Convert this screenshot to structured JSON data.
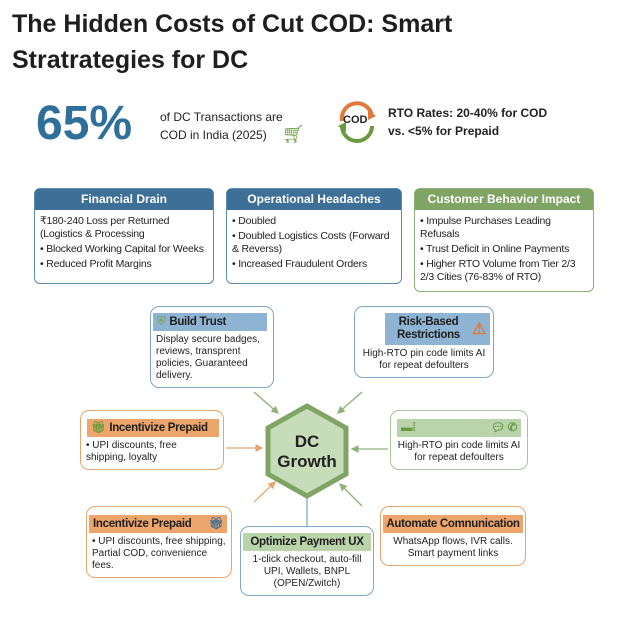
{
  "title": "The Hidden Costs of Cut COD: Smart Stratrategies for DC",
  "stat": {
    "value": "65%",
    "line1": "of DC Transactions are",
    "line2": "COD in India (2025)",
    "cod_label": "COD",
    "rto_line1": "RTO Rates: 20-40% for COD",
    "rto_line2": "vs. <5% for Prepaid"
  },
  "cards": [
    {
      "title": "Financial Drain",
      "items": [
        "₹180-240 Loss per Returned (Logistics & Processing",
        "• Blocked Working Capital for Weeks",
        "• Reduced Profit Margins"
      ]
    },
    {
      "title": "Operational Headaches",
      "items": [
        "• Doubled",
        "• Doubled Logistics Costs (Forward & Reverss)",
        "• Increased Fraudulent Orders"
      ]
    },
    {
      "title": "Customer Behavior Impact",
      "items": [
        "• Impulse Purchases Leading Refusals",
        "• Trust Deficit in Online Payments",
        "• Higher RTO Volume from Tier 2/3 2/3 Cities (76-83% of RTO)"
      ]
    }
  ],
  "center": {
    "line1": "DC",
    "line2": "Growth"
  },
  "strategies": {
    "build_trust": {
      "title": "Build Trust",
      "text": "Display secure badges, reviews, transprent policies, Guaranteed delivery."
    },
    "risk": {
      "title": "Risk-Based Restrictions",
      "text": "High-RTO pin code limits AI for repeat defoulters"
    },
    "incent_left": {
      "title": "Incentivize Prepaid",
      "text": "• UPI discounts, free shipping, loyalty"
    },
    "right": {
      "text": "High-RTO pin code limits AI for repeat defoulters"
    },
    "incent_bottom": {
      "title": "Incentivize Prepaid",
      "text": "• UPI discounts, free shipping, Partial COD, convenience fees."
    },
    "optimize": {
      "title": "Optimize Payment UX",
      "text": "1-click checkout, auto-fill UPI, Wallets, BNPL (OPEN/Zwitch)"
    },
    "automate": {
      "title": "Automate Comnunication",
      "text": "WhatsApp flows, IVR calls. Smart payment links"
    }
  }
}
